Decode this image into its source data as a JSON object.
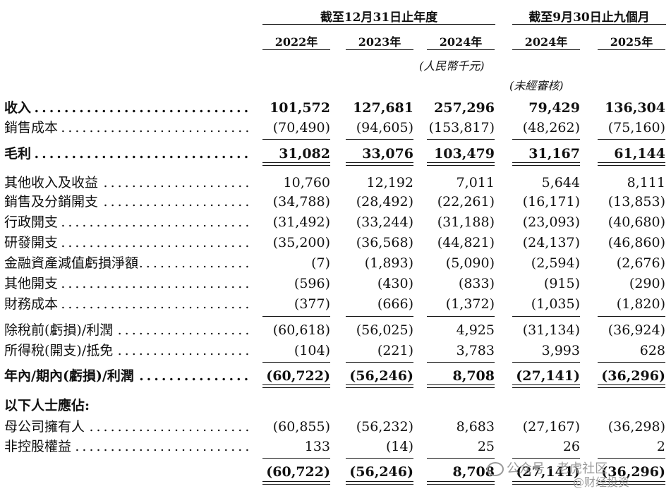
{
  "header": {
    "group1": "截至12月31日止年度",
    "group2": "截至9月30日止九個月",
    "years": [
      "2022年",
      "2023年",
      "2024年",
      "2024年",
      "2025年"
    ],
    "unit": "(人民幣千元)",
    "unaudited": "(未經審核)"
  },
  "rows": [
    {
      "label": "收入",
      "bold": true,
      "values": [
        "101,572",
        "127,681",
        "257,296",
        "79,429",
        "136,304"
      ]
    },
    {
      "label": "銷售成本",
      "bold": false,
      "values": [
        "(70,490)",
        "(94,605)",
        "(153,817)",
        "(48,262)",
        "(75,160)"
      ]
    },
    {
      "label": "毛利",
      "bold": true,
      "values": [
        "31,082",
        "33,076",
        "103,479",
        "31,167",
        "61,144"
      ]
    },
    {
      "label": "其他收入及收益",
      "bold": false,
      "values": [
        "10,760",
        "12,192",
        "7,011",
        "5,644",
        "8,111"
      ]
    },
    {
      "label": "銷售及分銷開支",
      "bold": false,
      "values": [
        "(34,788)",
        "(28,492)",
        "(22,261)",
        "(16,171)",
        "(13,853)"
      ]
    },
    {
      "label": "行政開支",
      "bold": false,
      "values": [
        "(31,492)",
        "(33,244)",
        "(31,188)",
        "(23,093)",
        "(40,680)"
      ]
    },
    {
      "label": "研發開支",
      "bold": false,
      "values": [
        "(35,200)",
        "(36,568)",
        "(44,821)",
        "(24,137)",
        "(46,860)"
      ]
    },
    {
      "label": "金融資產減值虧損淨額",
      "bold": false,
      "values": [
        "(7)",
        "(1,893)",
        "(5,090)",
        "(2,594)",
        "(2,676)"
      ]
    },
    {
      "label": "其他開支",
      "bold": false,
      "values": [
        "(596)",
        "(430)",
        "(833)",
        "(915)",
        "(290)"
      ]
    },
    {
      "label": "財務成本",
      "bold": false,
      "values": [
        "(377)",
        "(666)",
        "(1,372)",
        "(1,035)",
        "(1,820)"
      ]
    },
    {
      "label": "除稅前(虧損)/利潤",
      "bold": false,
      "values": [
        "(60,618)",
        "(56,025)",
        "4,925",
        "(31,134)",
        "(36,924)"
      ]
    },
    {
      "label": "所得稅(開支)/抵免",
      "bold": false,
      "values": [
        "(104)",
        "(221)",
        "3,783",
        "3,993",
        "628"
      ]
    },
    {
      "label": "年內/期內(虧損)/利潤",
      "bold": true,
      "values": [
        "(60,722)",
        "(56,246)",
        "8,708",
        "(27,141)",
        "(36,296)"
      ]
    },
    {
      "label": "以下人士應佔:",
      "bold": true,
      "values": [
        "",
        "",
        "",
        "",
        ""
      ],
      "nodots": true
    },
    {
      "label": "母公司擁有人",
      "bold": false,
      "values": [
        "(60,855)",
        "(56,232)",
        "8,683",
        "(27,167)",
        "(36,298)"
      ]
    },
    {
      "label": "非控股權益",
      "bold": false,
      "values": [
        "133",
        "(14)",
        "25",
        "26",
        "2"
      ]
    },
    {
      "label": "",
      "bold": true,
      "values": [
        "(60,722)",
        "(56,246)",
        "8,708",
        "(27,141)",
        "(36,296)"
      ],
      "nodots": true
    }
  ],
  "watermark": {
    "line1": "公众号 · 老虎社区",
    "line2": "@财经投资"
  }
}
